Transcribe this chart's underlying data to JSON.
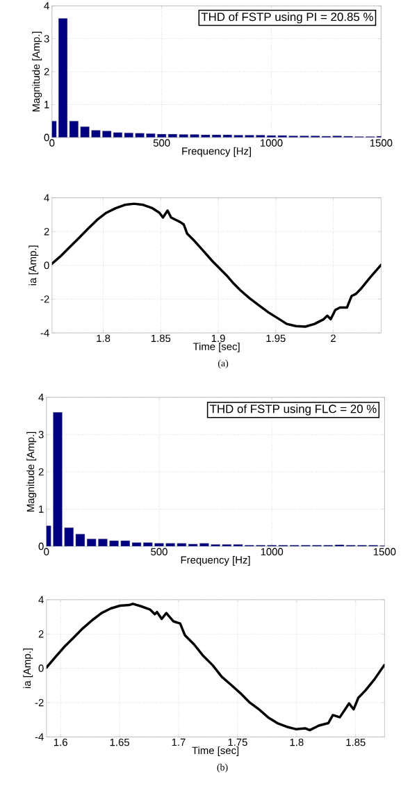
{
  "chart_data": [
    {
      "type": "bar",
      "xlabel": "Frequency [Hz]",
      "ylabel": "Magnitude [Amp.]",
      "annotations": [
        "THD of FSTP using PI = 20.85 %"
      ],
      "color": "#000080",
      "x": [
        0,
        50,
        100,
        150,
        200,
        250,
        300,
        350,
        400,
        450,
        500,
        550,
        600,
        650,
        700,
        750,
        800,
        850,
        900,
        950,
        1000,
        1050,
        1100,
        1150,
        1200,
        1250,
        1300,
        1350,
        1400,
        1450,
        1500
      ],
      "values": [
        0.5,
        3.62,
        0.5,
        0.33,
        0.22,
        0.2,
        0.15,
        0.14,
        0.13,
        0.12,
        0.1,
        0.1,
        0.09,
        0.09,
        0.08,
        0.08,
        0.08,
        0.07,
        0.07,
        0.07,
        0.06,
        0.06,
        0.05,
        0.05,
        0.05,
        0.04,
        0.05,
        0.04,
        0.03,
        0.03,
        0.04
      ],
      "xlim": [
        0,
        1500
      ],
      "ylim": [
        0,
        4
      ],
      "xticks": [
        0,
        500,
        1000,
        1500
      ],
      "yticks": [
        0,
        1,
        2,
        3,
        4
      ],
      "grid": true
    },
    {
      "type": "line",
      "xlabel": "Time [sec]",
      "ylabel": "ia [Amp.]",
      "annotations": [
        "(a)"
      ],
      "color": "#000000",
      "x": [
        1.7554,
        1.7624,
        1.7704,
        1.7785,
        1.7865,
        1.7946,
        1.8026,
        1.8107,
        1.8187,
        1.8268,
        1.8348,
        1.8429,
        1.8489,
        1.8519,
        1.8559,
        1.859,
        1.867,
        1.87,
        1.873,
        1.8791,
        1.8871,
        1.8952,
        1.9012,
        1.9072,
        1.9133,
        1.9193,
        1.9274,
        1.9354,
        1.9435,
        1.9515,
        1.9596,
        1.9676,
        1.9757,
        1.9837,
        1.9917,
        1.9948,
        1.9978,
        2.0018,
        2.0058,
        2.0119,
        2.0159,
        2.0199,
        2.0239,
        2.032,
        2.0416
      ],
      "values": [
        0.1,
        0.51,
        1.05,
        1.6,
        2.15,
        2.69,
        3.11,
        3.38,
        3.58,
        3.65,
        3.58,
        3.38,
        3.11,
        2.83,
        3.24,
        2.83,
        2.56,
        2.42,
        1.87,
        1.46,
        0.85,
        0.23,
        -0.18,
        -0.59,
        -1.07,
        -1.48,
        -1.96,
        -2.37,
        -2.78,
        -3.12,
        -3.47,
        -3.6,
        -3.63,
        -3.47,
        -3.19,
        -2.98,
        -3.19,
        -2.64,
        -2.5,
        -2.5,
        -1.82,
        -1.68,
        -1.4,
        -0.72,
        0.03
      ],
      "xlim": [
        1.7554,
        2.0416
      ],
      "ylim": [
        -4,
        4
      ],
      "xticks": [
        1.8,
        1.85,
        1.9,
        1.95,
        2
      ],
      "yticks": [
        -4,
        -2,
        0,
        2,
        4
      ],
      "grid": true
    },
    {
      "type": "bar",
      "xlabel": "Frequency [Hz]",
      "ylabel": "Magnitude [Amp.]",
      "annotations": [
        "THD of FSTP using FLC = 20 %"
      ],
      "color": "#000080",
      "x": [
        0,
        50,
        100,
        150,
        200,
        250,
        300,
        350,
        400,
        450,
        500,
        550,
        600,
        650,
        700,
        750,
        800,
        850,
        900,
        950,
        1000,
        1050,
        1100,
        1150,
        1200,
        1250,
        1300,
        1350,
        1400,
        1450,
        1500
      ],
      "values": [
        0.55,
        3.6,
        0.5,
        0.33,
        0.2,
        0.2,
        0.15,
        0.15,
        0.1,
        0.1,
        0.08,
        0.08,
        0.08,
        0.06,
        0.08,
        0.05,
        0.05,
        0.05,
        0.03,
        0.03,
        0.03,
        0.03,
        0.03,
        0.03,
        0.03,
        0.03,
        0.04,
        0.03,
        0.03,
        0.03,
        0.02
      ],
      "xlim": [
        0,
        1500
      ],
      "ylim": [
        0,
        4
      ],
      "xticks": [
        0,
        500,
        1000,
        1500
      ],
      "yticks": [
        0,
        1,
        2,
        3,
        4
      ],
      "grid": true
    },
    {
      "type": "line",
      "xlabel": "Time [sec]",
      "ylabel": "ia [Amp.]",
      "annotations": [
        "(b)"
      ],
      "color": "#000000",
      "x": [
        1.588,
        1.5955,
        1.6033,
        1.6112,
        1.619,
        1.6269,
        1.6347,
        1.6425,
        1.6504,
        1.6582,
        1.6612,
        1.668,
        1.6759,
        1.6798,
        1.6817,
        1.6857,
        1.6896,
        1.6955,
        1.7013,
        1.7053,
        1.7131,
        1.7209,
        1.7288,
        1.7366,
        1.7445,
        1.7523,
        1.7601,
        1.768,
        1.7758,
        1.7837,
        1.7915,
        1.7993,
        1.8072,
        1.8111,
        1.8189,
        1.8268,
        1.8307,
        1.8366,
        1.8444,
        1.8483,
        1.8523,
        1.8581,
        1.866,
        1.8742
      ],
      "values": [
        0.04,
        0.65,
        1.26,
        1.8,
        2.34,
        2.81,
        3.22,
        3.49,
        3.65,
        3.69,
        3.76,
        3.62,
        3.42,
        3.15,
        3.28,
        2.88,
        3.22,
        2.74,
        2.61,
        1.93,
        1.39,
        0.72,
        0.18,
        -0.5,
        -0.97,
        -1.45,
        -1.99,
        -2.39,
        -2.86,
        -3.2,
        -3.41,
        -3.55,
        -3.5,
        -3.61,
        -3.34,
        -3.2,
        -2.73,
        -2.86,
        -2.05,
        -2.39,
        -1.72,
        -1.31,
        -0.64,
        0.18
      ],
      "xlim": [
        1.588,
        1.8745
      ],
      "ylim": [
        -4,
        4
      ],
      "xticks": [
        1.6,
        1.65,
        1.7,
        1.75,
        1.8,
        1.85
      ],
      "yticks": [
        -4,
        -2,
        0,
        2,
        4
      ],
      "grid": true
    }
  ]
}
